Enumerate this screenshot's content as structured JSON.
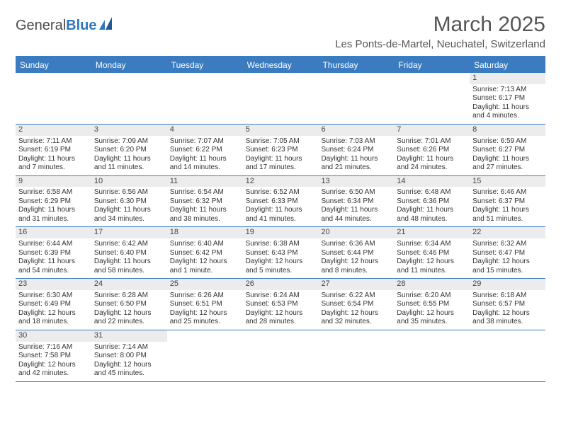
{
  "logo": {
    "text_left": "General",
    "text_right": "Blue"
  },
  "header": {
    "title": "March 2025",
    "location": "Les Ponts-de-Martel, Neuchatel, Switzerland"
  },
  "colors": {
    "header_bar": "#3b7bbf",
    "header_text": "#ffffff",
    "page_bg": "#ffffff",
    "daynum_bg": "#ececec",
    "text": "#333333",
    "rule": "#3b7bbf"
  },
  "calendar": {
    "days_of_week": [
      "Sunday",
      "Monday",
      "Tuesday",
      "Wednesday",
      "Thursday",
      "Friday",
      "Saturday"
    ],
    "first_weekday_index": 6,
    "num_days": 31,
    "cells": {
      "1": {
        "sunrise": "7:13 AM",
        "sunset": "6:17 PM",
        "daylight": "11 hours and 4 minutes."
      },
      "2": {
        "sunrise": "7:11 AM",
        "sunset": "6:19 PM",
        "daylight": "11 hours and 7 minutes."
      },
      "3": {
        "sunrise": "7:09 AM",
        "sunset": "6:20 PM",
        "daylight": "11 hours and 11 minutes."
      },
      "4": {
        "sunrise": "7:07 AM",
        "sunset": "6:22 PM",
        "daylight": "11 hours and 14 minutes."
      },
      "5": {
        "sunrise": "7:05 AM",
        "sunset": "6:23 PM",
        "daylight": "11 hours and 17 minutes."
      },
      "6": {
        "sunrise": "7:03 AM",
        "sunset": "6:24 PM",
        "daylight": "11 hours and 21 minutes."
      },
      "7": {
        "sunrise": "7:01 AM",
        "sunset": "6:26 PM",
        "daylight": "11 hours and 24 minutes."
      },
      "8": {
        "sunrise": "6:59 AM",
        "sunset": "6:27 PM",
        "daylight": "11 hours and 27 minutes."
      },
      "9": {
        "sunrise": "6:58 AM",
        "sunset": "6:29 PM",
        "daylight": "11 hours and 31 minutes."
      },
      "10": {
        "sunrise": "6:56 AM",
        "sunset": "6:30 PM",
        "daylight": "11 hours and 34 minutes."
      },
      "11": {
        "sunrise": "6:54 AM",
        "sunset": "6:32 PM",
        "daylight": "11 hours and 38 minutes."
      },
      "12": {
        "sunrise": "6:52 AM",
        "sunset": "6:33 PM",
        "daylight": "11 hours and 41 minutes."
      },
      "13": {
        "sunrise": "6:50 AM",
        "sunset": "6:34 PM",
        "daylight": "11 hours and 44 minutes."
      },
      "14": {
        "sunrise": "6:48 AM",
        "sunset": "6:36 PM",
        "daylight": "11 hours and 48 minutes."
      },
      "15": {
        "sunrise": "6:46 AM",
        "sunset": "6:37 PM",
        "daylight": "11 hours and 51 minutes."
      },
      "16": {
        "sunrise": "6:44 AM",
        "sunset": "6:39 PM",
        "daylight": "11 hours and 54 minutes."
      },
      "17": {
        "sunrise": "6:42 AM",
        "sunset": "6:40 PM",
        "daylight": "11 hours and 58 minutes."
      },
      "18": {
        "sunrise": "6:40 AM",
        "sunset": "6:42 PM",
        "daylight": "12 hours and 1 minute."
      },
      "19": {
        "sunrise": "6:38 AM",
        "sunset": "6:43 PM",
        "daylight": "12 hours and 5 minutes."
      },
      "20": {
        "sunrise": "6:36 AM",
        "sunset": "6:44 PM",
        "daylight": "12 hours and 8 minutes."
      },
      "21": {
        "sunrise": "6:34 AM",
        "sunset": "6:46 PM",
        "daylight": "12 hours and 11 minutes."
      },
      "22": {
        "sunrise": "6:32 AM",
        "sunset": "6:47 PM",
        "daylight": "12 hours and 15 minutes."
      },
      "23": {
        "sunrise": "6:30 AM",
        "sunset": "6:49 PM",
        "daylight": "12 hours and 18 minutes."
      },
      "24": {
        "sunrise": "6:28 AM",
        "sunset": "6:50 PM",
        "daylight": "12 hours and 22 minutes."
      },
      "25": {
        "sunrise": "6:26 AM",
        "sunset": "6:51 PM",
        "daylight": "12 hours and 25 minutes."
      },
      "26": {
        "sunrise": "6:24 AM",
        "sunset": "6:53 PM",
        "daylight": "12 hours and 28 minutes."
      },
      "27": {
        "sunrise": "6:22 AM",
        "sunset": "6:54 PM",
        "daylight": "12 hours and 32 minutes."
      },
      "28": {
        "sunrise": "6:20 AM",
        "sunset": "6:55 PM",
        "daylight": "12 hours and 35 minutes."
      },
      "29": {
        "sunrise": "6:18 AM",
        "sunset": "6:57 PM",
        "daylight": "12 hours and 38 minutes."
      },
      "30": {
        "sunrise": "7:16 AM",
        "sunset": "7:58 PM",
        "daylight": "12 hours and 42 minutes."
      },
      "31": {
        "sunrise": "7:14 AM",
        "sunset": "8:00 PM",
        "daylight": "12 hours and 45 minutes."
      }
    },
    "labels": {
      "sunrise": "Sunrise:",
      "sunset": "Sunset:",
      "daylight": "Daylight:"
    }
  }
}
